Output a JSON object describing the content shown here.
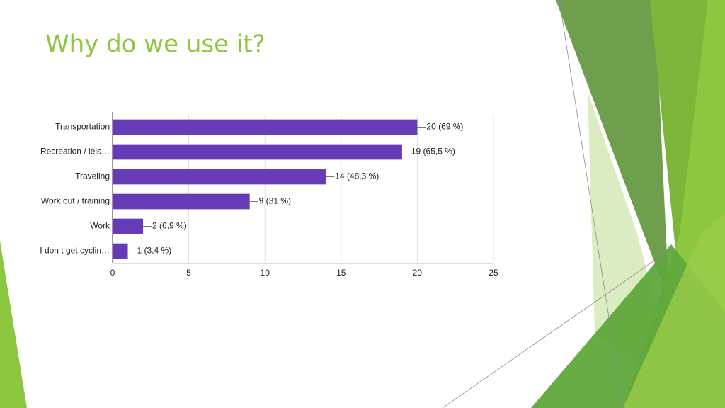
{
  "title": "Why do we use it?",
  "chart_data": {
    "type": "hbar",
    "categories": [
      "Transportation",
      "Recreation / leis…",
      "Traveling",
      "Work out / training",
      "Work",
      "I don t get cyclin…"
    ],
    "values": [
      20,
      19,
      14,
      9,
      2,
      1
    ],
    "value_labels": [
      "20 (69 %)",
      "19 (65,5 %)",
      "14 (48,3 %)",
      "9 (31 %)",
      "2 (6,9 %)",
      "1 (3,4 %)"
    ],
    "color": "#673ab7",
    "xlim": [
      0,
      25
    ],
    "xticks": [
      0,
      5,
      10,
      15,
      20,
      25
    ],
    "grid": true
  }
}
